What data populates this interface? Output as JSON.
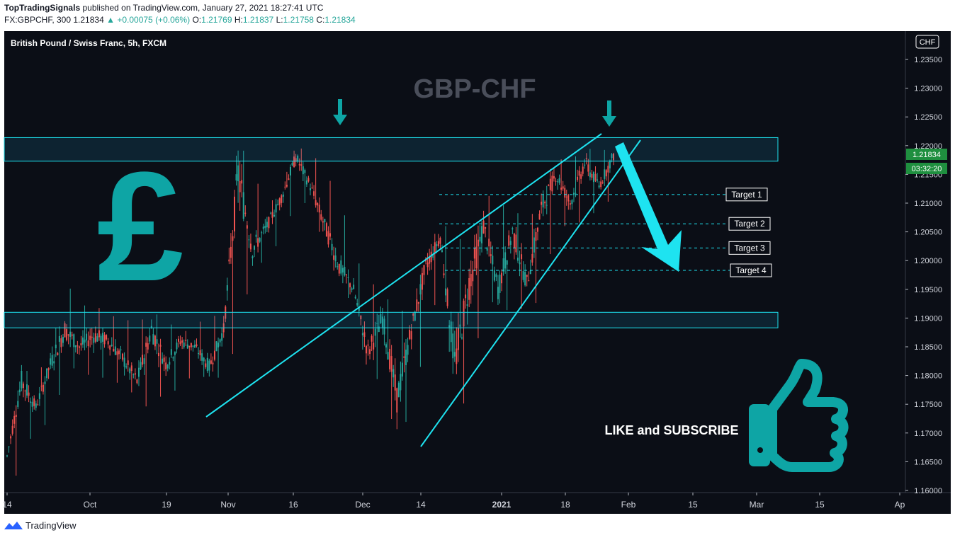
{
  "header": {
    "author": "TopTradingSignals",
    "published_text": "published on TradingView.com, January 27, 2021 18:27:41 UTC",
    "symbol_line": "FX:GBPCHF, 300",
    "last": "1.21834",
    "change": "+0.00075 (+0.06%)",
    "o_label": "O:",
    "o_val": "1.21769",
    "h_label": "H:",
    "h_val": "1.21837",
    "l_label": "L:",
    "l_val": "1.21758",
    "c_label": "C:",
    "c_val": "1.21834"
  },
  "footer": {
    "brand": "TradingView"
  },
  "chart_data": {
    "type": "candlestick",
    "title": "British Pound / Swiss Franc, 5h, FXCM",
    "watermark": "GBP-CHF",
    "currency": "CHF",
    "price_label": "1.21834",
    "countdown_label": "03:32:20",
    "y_ticks": [
      "1.23500",
      "1.23000",
      "1.22500",
      "1.22000",
      "1.21500",
      "1.21000",
      "1.20500",
      "1.20000",
      "1.19500",
      "1.19000",
      "1.18500",
      "1.18000",
      "1.17500",
      "1.17000",
      "1.16500",
      "1.16000"
    ],
    "ylim": [
      1.16,
      1.2375
    ],
    "x_ticks": [
      "14",
      "Oct",
      "19",
      "Nov",
      "16",
      "Dec",
      "14",
      "2021",
      "18",
      "Feb",
      "15",
      "Mar",
      "15",
      "Ap"
    ],
    "colors": {
      "up": "#26a69a",
      "down": "#ef5350",
      "background": "#0b0e16",
      "accent": "#00e5ff",
      "icon": "#0ea5a5",
      "price_tag": "#1f8f3f"
    },
    "zones": [
      {
        "name": "resistance",
        "low": 1.2173,
        "high": 1.2214
      },
      {
        "name": "support",
        "low": 1.1883,
        "high": 1.191
      }
    ],
    "targets": [
      {
        "label": "Target 1",
        "price": 1.2115
      },
      {
        "label": "Target 2",
        "price": 1.2064
      },
      {
        "label": "Target 3",
        "price": 1.2022
      },
      {
        "label": "Target 4",
        "price": 1.1983
      }
    ],
    "series": [
      {
        "x": "Sep 14",
        "open": 1.1645,
        "high": 1.1672,
        "low": 1.1602,
        "close": 1.166
      },
      {
        "x": "Sep 18",
        "open": 1.166,
        "high": 1.181,
        "low": 1.164,
        "close": 1.179
      },
      {
        "x": "Sep 22",
        "open": 1.179,
        "high": 1.1805,
        "low": 1.172,
        "close": 1.1745
      },
      {
        "x": "Sep 25",
        "open": 1.1745,
        "high": 1.183,
        "low": 1.171,
        "close": 1.182
      },
      {
        "x": "Sep 29",
        "open": 1.182,
        "high": 1.197,
        "low": 1.18,
        "close": 1.188
      },
      {
        "x": "Oct 2",
        "open": 1.188,
        "high": 1.192,
        "low": 1.182,
        "close": 1.185
      },
      {
        "x": "Oct 6",
        "open": 1.185,
        "high": 1.1925,
        "low": 1.179,
        "close": 1.187
      },
      {
        "x": "Oct 9",
        "open": 1.187,
        "high": 1.1905,
        "low": 1.18,
        "close": 1.186
      },
      {
        "x": "Oct 13",
        "open": 1.186,
        "high": 1.19,
        "low": 1.178,
        "close": 1.183
      },
      {
        "x": "Oct 16",
        "open": 1.183,
        "high": 1.189,
        "low": 1.1765,
        "close": 1.179
      },
      {
        "x": "Oct 19",
        "open": 1.179,
        "high": 1.191,
        "low": 1.1735,
        "close": 1.188
      },
      {
        "x": "Oct 22",
        "open": 1.188,
        "high": 1.19,
        "low": 1.178,
        "close": 1.182
      },
      {
        "x": "Oct 26",
        "open": 1.182,
        "high": 1.187,
        "low": 1.177,
        "close": 1.186
      },
      {
        "x": "Oct 29",
        "open": 1.186,
        "high": 1.189,
        "low": 1.181,
        "close": 1.185
      },
      {
        "x": "Nov 2",
        "open": 1.185,
        "high": 1.19,
        "low": 1.179,
        "close": 1.1815
      },
      {
        "x": "Nov 5",
        "open": 1.1815,
        "high": 1.191,
        "low": 1.18,
        "close": 1.188
      },
      {
        "x": "Nov 9",
        "open": 1.188,
        "high": 1.221,
        "low": 1.186,
        "close": 1.215
      },
      {
        "x": "Nov 12",
        "open": 1.215,
        "high": 1.216,
        "low": 1.199,
        "close": 1.202
      },
      {
        "x": "Nov 16",
        "open": 1.202,
        "high": 1.209,
        "low": 1.2,
        "close": 1.206
      },
      {
        "x": "Nov 19",
        "open": 1.206,
        "high": 1.213,
        "low": 1.204,
        "close": 1.211
      },
      {
        "x": "Nov 23",
        "open": 1.211,
        "high": 1.2195,
        "low": 1.21,
        "close": 1.218
      },
      {
        "x": "Nov 26",
        "open": 1.218,
        "high": 1.2195,
        "low": 1.21,
        "close": 1.213
      },
      {
        "x": "Nov 30",
        "open": 1.213,
        "high": 1.215,
        "low": 1.202,
        "close": 1.206
      },
      {
        "x": "Dec 3",
        "open": 1.206,
        "high": 1.212,
        "low": 1.196,
        "close": 1.199
      },
      {
        "x": "Dec 7",
        "open": 1.199,
        "high": 1.201,
        "low": 1.192,
        "close": 1.195
      },
      {
        "x": "Dec 9",
        "open": 1.195,
        "high": 1.197,
        "low": 1.18,
        "close": 1.184
      },
      {
        "x": "Dec 12",
        "open": 1.184,
        "high": 1.194,
        "low": 1.179,
        "close": 1.19
      },
      {
        "x": "Dec 14",
        "open": 1.19,
        "high": 1.192,
        "low": 1.1685,
        "close": 1.176
      },
      {
        "x": "Dec 16",
        "open": 1.176,
        "high": 1.19,
        "low": 1.174,
        "close": 1.188
      },
      {
        "x": "Dec 19",
        "open": 1.188,
        "high": 1.201,
        "low": 1.186,
        "close": 1.199
      },
      {
        "x": "Dec 22",
        "open": 1.199,
        "high": 1.206,
        "low": 1.196,
        "close": 1.204
      },
      {
        "x": "Dec 25",
        "open": 1.204,
        "high": 1.206,
        "low": 1.177,
        "close": 1.182
      },
      {
        "x": "Dec 28",
        "open": 1.182,
        "high": 1.2,
        "low": 1.174,
        "close": 1.196
      },
      {
        "x": "Dec 31",
        "open": 1.196,
        "high": 1.212,
        "low": 1.194,
        "close": 1.206
      },
      {
        "x": "Jan 4",
        "open": 1.206,
        "high": 1.21,
        "low": 1.192,
        "close": 1.195
      },
      {
        "x": "Jan 7",
        "open": 1.195,
        "high": 1.209,
        "low": 1.191,
        "close": 1.205
      },
      {
        "x": "Jan 10",
        "open": 1.205,
        "high": 1.207,
        "low": 1.192,
        "close": 1.196
      },
      {
        "x": "Jan 13",
        "open": 1.196,
        "high": 1.21,
        "low": 1.193,
        "close": 1.209
      },
      {
        "x": "Jan 16",
        "open": 1.209,
        "high": 1.218,
        "low": 1.206,
        "close": 1.215
      },
      {
        "x": "Jan 19",
        "open": 1.215,
        "high": 1.217,
        "low": 1.206,
        "close": 1.21
      },
      {
        "x": "Jan 21",
        "open": 1.21,
        "high": 1.22,
        "low": 1.207,
        "close": 1.217
      },
      {
        "x": "Jan 24",
        "open": 1.217,
        "high": 1.2185,
        "low": 1.209,
        "close": 1.213
      },
      {
        "x": "Jan 27",
        "open": 1.213,
        "high": 1.2205,
        "low": 1.211,
        "close": 1.2183
      }
    ],
    "annotations": {
      "cta_text": "LIKE and SUBSCRIBE"
    }
  }
}
